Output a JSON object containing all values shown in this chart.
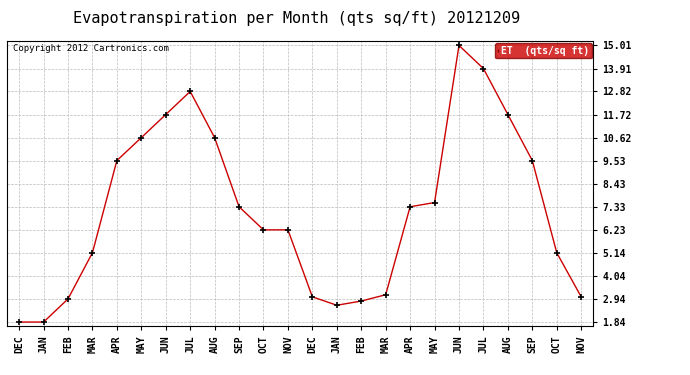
{
  "title": "Evapotranspiration per Month (qts sq/ft) 20121209",
  "copyright": "Copyright 2012 Cartronics.com",
  "legend_label": "ET  (qts/sq ft)",
  "categories": [
    "DEC",
    "JAN",
    "FEB",
    "MAR",
    "APR",
    "MAY",
    "JUN",
    "JUL",
    "AUG",
    "SEP",
    "OCT",
    "NOV",
    "DEC",
    "JAN",
    "FEB",
    "MAR",
    "APR",
    "MAY",
    "JUN",
    "JUL",
    "AUG",
    "SEP",
    "OCT",
    "NOV"
  ],
  "values": [
    1.84,
    1.84,
    2.94,
    5.14,
    9.53,
    10.62,
    11.72,
    12.82,
    10.62,
    7.33,
    6.23,
    6.23,
    3.04,
    2.64,
    2.84,
    3.14,
    7.33,
    7.53,
    15.01,
    13.91,
    11.72,
    9.53,
    5.14,
    3.04
  ],
  "yticks": [
    1.84,
    2.94,
    4.04,
    5.14,
    6.23,
    7.33,
    8.43,
    9.53,
    10.62,
    11.72,
    12.82,
    13.91,
    15.01
  ],
  "ylim_min": 1.64,
  "ylim_max": 15.21,
  "line_color": "#cc0000",
  "marker_color": "#000000",
  "background_color": "#ffffff",
  "grid_color": "#bbbbbb",
  "title_fontsize": 11,
  "copyright_fontsize": 6.5,
  "tick_fontsize": 7,
  "legend_bg": "#cc0000",
  "legend_text_color": "#ffffff"
}
